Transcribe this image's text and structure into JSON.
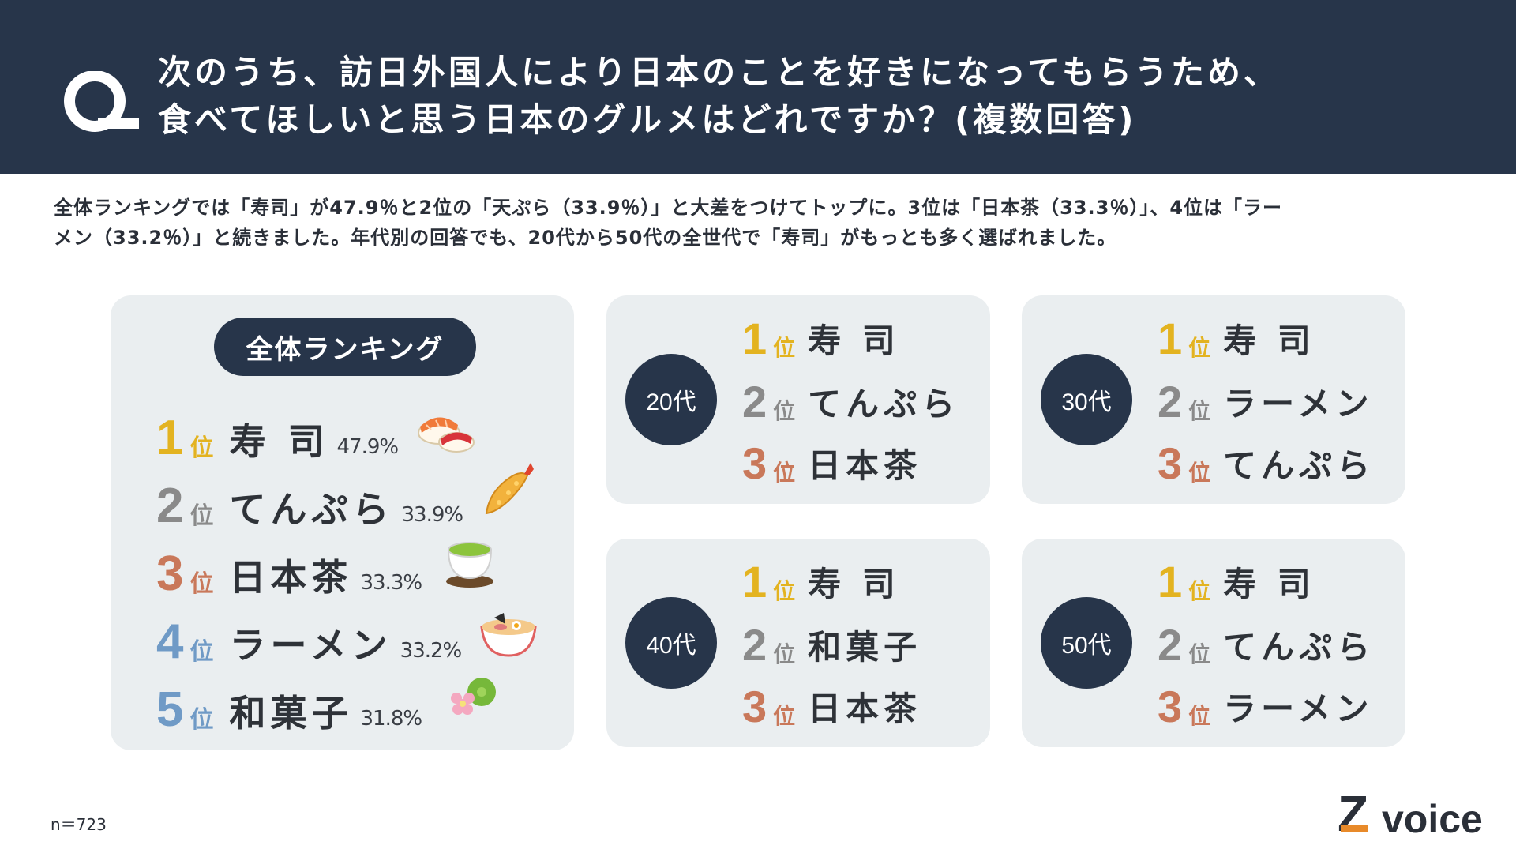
{
  "header": {
    "question_line1": "次のうち、訪日外国人により日本のことを好きになってもらうため、",
    "question_line2": "食べてほしいと思う日本のグルメはどれですか？(複数回答)"
  },
  "lead": {
    "line1": "全体ランキングでは「寿司」が47.9％と2位の「天ぷら（33.9％）」と大差をつけてトップに。3位は「日本茶（33.3％）」、4位は「ラー",
    "line2": "メン（33.2％）」と続きました。年代別の回答でも、20代から50代の全世代で「寿司」がもっとも多く選ばれました。"
  },
  "overall": {
    "title": "全体ランキング",
    "rank_suffix": "位",
    "items": [
      {
        "rank": "1",
        "name": "寿 司",
        "pct": "47.9%",
        "icon": "sushi-icon"
      },
      {
        "rank": "2",
        "name": "てんぷら",
        "pct": "33.9%",
        "icon": "tempura-icon"
      },
      {
        "rank": "3",
        "name": "日本茶",
        "pct": "33.3%",
        "icon": "green-tea-icon"
      },
      {
        "rank": "4",
        "name": "ラーメン",
        "pct": "33.2%",
        "icon": "ramen-icon"
      },
      {
        "rank": "5",
        "name": "和菓子",
        "pct": "31.8%",
        "icon": "wagashi-icon"
      }
    ]
  },
  "age_groups": [
    {
      "label": "20代",
      "items": [
        {
          "rank": "1",
          "name": "寿 司"
        },
        {
          "rank": "2",
          "name": "てんぷら"
        },
        {
          "rank": "3",
          "name": "日本茶"
        }
      ]
    },
    {
      "label": "30代",
      "items": [
        {
          "rank": "1",
          "name": "寿 司"
        },
        {
          "rank": "2",
          "name": "ラーメン"
        },
        {
          "rank": "3",
          "name": "てんぷら"
        }
      ]
    },
    {
      "label": "40代",
      "items": [
        {
          "rank": "1",
          "name": "寿 司"
        },
        {
          "rank": "2",
          "name": "和菓子"
        },
        {
          "rank": "3",
          "name": "日本茶"
        }
      ]
    },
    {
      "label": "50代",
      "items": [
        {
          "rank": "1",
          "name": "寿 司"
        },
        {
          "rank": "2",
          "name": "てんぷら"
        },
        {
          "rank": "3",
          "name": "ラーメン"
        }
      ]
    }
  ],
  "footnote": "n＝723",
  "logo": {
    "text": "voice",
    "mark": "Z"
  },
  "colors": {
    "navy": "#27354a",
    "panel": "#eaeef0",
    "rank1": "#e3b320",
    "rank2": "#8a8a8a",
    "rank3": "#c9785a",
    "rank4_5": "#6f9ac6"
  }
}
